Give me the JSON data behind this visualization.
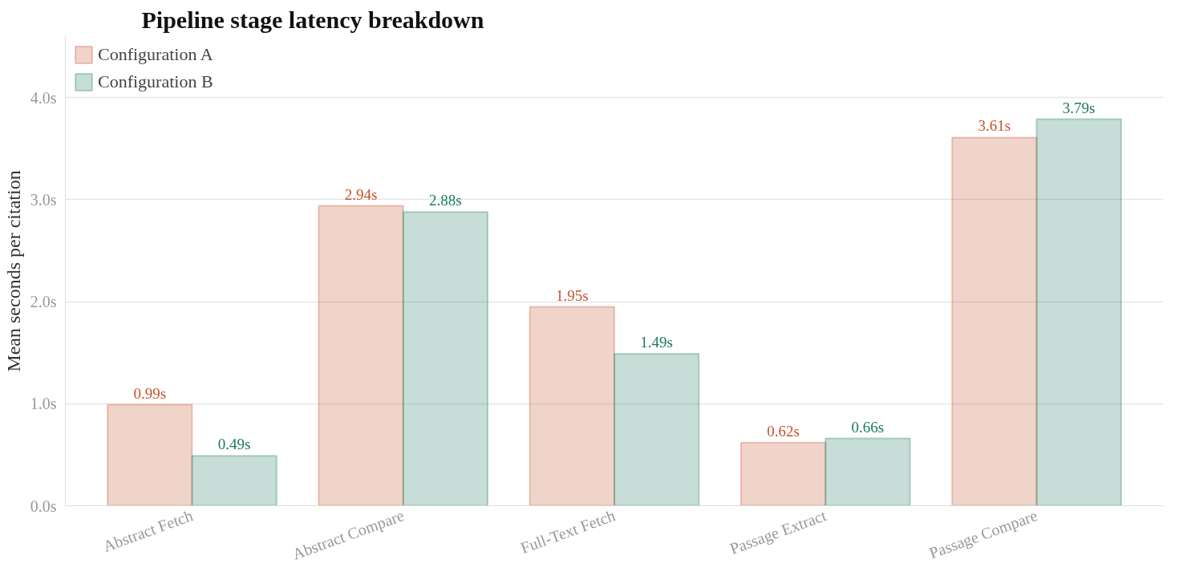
{
  "chart_data": {
    "type": "bar",
    "title": "Pipeline stage latency breakdown",
    "ylabel": "Mean seconds per citation",
    "categories": [
      "Abstract Fetch",
      "Abstract Compare",
      "Full-Text Fetch",
      "Passage Extract",
      "Passage Compare"
    ],
    "series": [
      {
        "name": "Configuration A",
        "color": "#c4532b",
        "values": [
          0.99,
          2.94,
          1.95,
          0.62,
          3.61
        ],
        "value_labels": [
          "0.99s",
          "2.94s",
          "1.95s",
          "0.62s",
          "3.61s"
        ]
      },
      {
        "name": "Configuration B",
        "color": "#1a7a5e",
        "values": [
          0.49,
          2.88,
          1.49,
          0.66,
          3.79
        ],
        "value_labels": [
          "0.49s",
          "2.88s",
          "1.49s",
          "0.66s",
          "3.79s"
        ]
      }
    ],
    "ylim": [
      0,
      4.6
    ],
    "yticks": [
      {
        "value": 0,
        "label": "0.0s"
      },
      {
        "value": 1,
        "label": "1.0s"
      },
      {
        "value": 2,
        "label": "2.0s"
      },
      {
        "value": 3,
        "label": "3.0s"
      },
      {
        "value": 4,
        "label": "4.0s"
      }
    ],
    "grid": "y",
    "legend": "top left"
  }
}
